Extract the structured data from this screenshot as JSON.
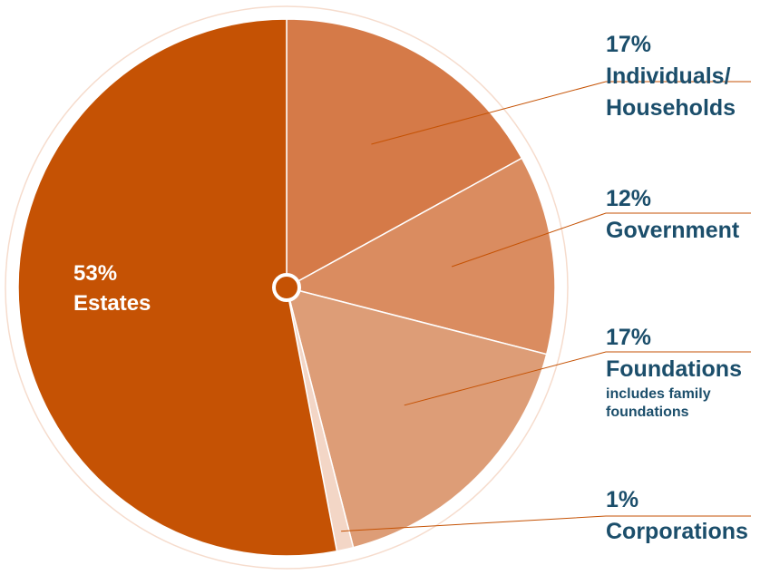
{
  "chart_data": {
    "type": "pie",
    "slices": [
      {
        "label": "Individuals/ Households",
        "value": 17,
        "pct_label": "17%",
        "name_lines": [
          "Individuals/",
          "Households"
        ],
        "sub_lines": [],
        "color": "#d57a48"
      },
      {
        "label": "Government",
        "value": 12,
        "pct_label": "12%",
        "name_lines": [
          "Government"
        ],
        "sub_lines": [],
        "color": "#da8c60"
      },
      {
        "label": "Foundations",
        "value": 17,
        "pct_label": "17%",
        "name_lines": [
          "Foundations"
        ],
        "sub_lines": [
          "includes family",
          "foundations"
        ],
        "color": "#dd9d77"
      },
      {
        "label": "Corporations",
        "value": 1,
        "pct_label": "1%",
        "name_lines": [
          "Corporations"
        ],
        "sub_lines": [],
        "color": "#f3d6c6"
      },
      {
        "label": "Estates",
        "value": 53,
        "pct_label": "53%",
        "name_lines": [
          "Estates"
        ],
        "sub_lines": [],
        "color": "#c55204"
      }
    ]
  },
  "colors": {
    "label_text": "#1b4e6b",
    "leader_line": "#c55204",
    "ring": "#f6dccd"
  }
}
